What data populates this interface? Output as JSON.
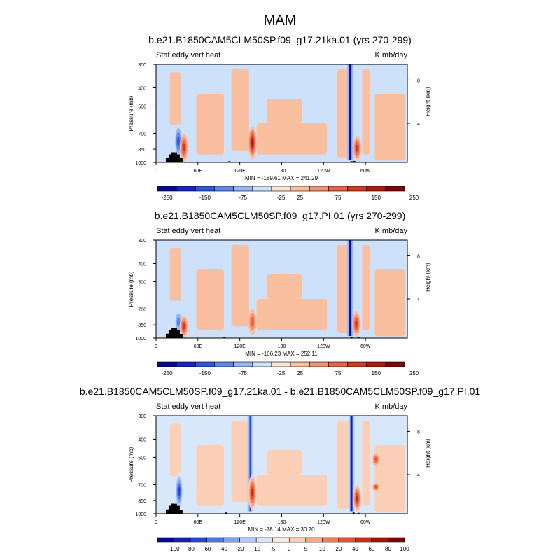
{
  "page": {
    "title": "MAM"
  },
  "scales": {
    "full": {
      "colors": [
        "#08088c",
        "#1a24c0",
        "#2f55db",
        "#5f87ee",
        "#98b6f5",
        "#cde1fa",
        "#fde3d1",
        "#f9bf9f",
        "#f29272",
        "#e56548",
        "#d03a22",
        "#ae1a0e",
        "#7c0606"
      ],
      "labels": [
        "-250",
        "-150",
        "-75",
        "-25",
        "25",
        "75",
        "150",
        "250"
      ],
      "label_boundaries": [
        1,
        3,
        5,
        7,
        8,
        10,
        12,
        14
      ]
    },
    "diff": {
      "colors": [
        "#08088c",
        "#1221b0",
        "#2646d2",
        "#4a74e8",
        "#7fa2f2",
        "#b3cbf8",
        "#d9e7fb",
        "#fdeadf",
        "#fbcfb5",
        "#f6a986",
        "#ee7d58",
        "#e0542f",
        "#c82d14",
        "#a21308",
        "#7c0606"
      ],
      "labels": [
        "-100",
        "-80",
        "-60",
        "-40",
        "-20",
        "-10",
        "-5",
        "0",
        "5",
        "10",
        "20",
        "40",
        "60",
        "80",
        "100"
      ],
      "label_boundaries": [
        1,
        2,
        3,
        4,
        5,
        6,
        7,
        8,
        9,
        10,
        11,
        12,
        13,
        14,
        15
      ]
    }
  },
  "chart_data": [
    {
      "type": "heatmap",
      "title": "b.e21.B1850CAM5CLM50SP.f09_g17.21ka.01 (yrs 270-299)",
      "left_label": "Stat eddy vert heat",
      "right_label": "K mb/day",
      "ylabel": "Pressure (mb)",
      "ylabel_right": "Height (km)",
      "x_ticks": [
        "0",
        "60E",
        "120E",
        "180",
        "120W",
        "60W"
      ],
      "x_tick_values": [
        0,
        60,
        120,
        180,
        240,
        300
      ],
      "x_range": [
        0,
        360
      ],
      "y_ticks": [
        "300",
        "400",
        "500",
        "700",
        "850",
        "1000"
      ],
      "y_range_mb": [
        300,
        1000
      ],
      "y_scale": "log",
      "right_ticks": [
        "8",
        "4"
      ],
      "stats": "MIN = -189.61  MAX = 241.29",
      "scale": "full",
      "min": -189.61,
      "max": 241.29,
      "features": [
        {
          "lon": 278,
          "p_top": 300,
          "p_bot": 975,
          "sign": -1,
          "level": 5,
          "kind": "strong-band"
        },
        {
          "lon": 138,
          "p_top": 640,
          "p_bot": 960,
          "sign": 1,
          "level": 4,
          "kind": "core"
        },
        {
          "lon": 32,
          "p_top": 620,
          "p_bot": 960,
          "sign": -1,
          "level": 3,
          "kind": "core"
        },
        {
          "lon": 40,
          "p_top": 700,
          "p_bot": 990,
          "sign": 1,
          "level": 3,
          "kind": "core"
        },
        {
          "lon": 288,
          "p_top": 720,
          "p_bot": 980,
          "sign": 1,
          "level": 3,
          "kind": "core"
        }
      ],
      "topography": [
        {
          "lon": [
            10,
            42
          ],
          "p": [
            1000,
            880
          ]
        },
        {
          "lon": 105,
          "p": [
            1000,
            985
          ]
        },
        {
          "lon": 280,
          "p": [
            1000,
            985
          ]
        },
        {
          "lon": 284,
          "p": [
            1000,
            982
          ]
        },
        {
          "lon": 290,
          "p": [
            1000,
            990
          ]
        }
      ]
    },
    {
      "type": "heatmap",
      "title": "b.e21.B1850CAM5CLM50SP.f09_g17.PI.01 (yrs 270-299)",
      "left_label": "Stat eddy vert heat",
      "right_label": "K mb/day",
      "ylabel": "Pressure (mb)",
      "ylabel_right": "Height (km)",
      "x_ticks": [
        "0",
        "60E",
        "120E",
        "180",
        "120W",
        "60W"
      ],
      "x_tick_values": [
        0,
        60,
        120,
        180,
        240,
        300
      ],
      "x_range": [
        0,
        360
      ],
      "y_ticks": [
        "300",
        "400",
        "500",
        "700",
        "850",
        "1000"
      ],
      "y_range_mb": [
        300,
        1000
      ],
      "y_scale": "log",
      "right_ticks": [
        "8",
        "4"
      ],
      "stats": "MIN = -166.23  MAX = 252.11",
      "scale": "full",
      "min": -166.23,
      "max": 252.11,
      "features": [
        {
          "lon": 278,
          "p_top": 300,
          "p_bot": 975,
          "sign": -1,
          "level": 5,
          "kind": "strong-band"
        },
        {
          "lon": 138,
          "p_top": 700,
          "p_bot": 960,
          "sign": 1,
          "level": 2,
          "kind": "core"
        },
        {
          "lon": 32,
          "p_top": 700,
          "p_bot": 960,
          "sign": -1,
          "level": 2,
          "kind": "core"
        },
        {
          "lon": 40,
          "p_top": 760,
          "p_bot": 990,
          "sign": 1,
          "level": 3,
          "kind": "core"
        },
        {
          "lon": 287,
          "p_top": 720,
          "p_bot": 980,
          "sign": 1,
          "level": 3,
          "kind": "core"
        }
      ],
      "topography": [
        {
          "lon": [
            10,
            42
          ],
          "p": [
            1000,
            880
          ]
        },
        {
          "lon": 98,
          "p": [
            1000,
            985
          ]
        },
        {
          "lon": 280,
          "p": [
            1000,
            985
          ]
        },
        {
          "lon": 290,
          "p": [
            1000,
            990
          ]
        }
      ]
    },
    {
      "type": "heatmap",
      "title": "b.e21.B1850CAM5CLM50SP.f09_g17.21ka.01 - b.e21.B1850CAM5CLM50SP.f09_g17.PI.01",
      "left_label": "Stat eddy vert heat",
      "right_label": "K mb/day",
      "ylabel": "Pressure (mb)",
      "ylabel_right": "Height (km)",
      "x_ticks": [
        "0",
        "60E",
        "120E",
        "180",
        "120W",
        "60W"
      ],
      "x_tick_values": [
        0,
        60,
        120,
        180,
        240,
        300
      ],
      "x_range": [
        0,
        360
      ],
      "y_ticks": [
        "300",
        "400",
        "500",
        "700",
        "850",
        "1000"
      ],
      "y_range_mb": [
        300,
        1000
      ],
      "y_scale": "log",
      "right_ticks": [
        "8",
        "4"
      ],
      "stats": "MIN = -78.14  MAX = 30.20",
      "scale": "diff",
      "min": -78.14,
      "max": 30.2,
      "features": [
        {
          "lon": 135,
          "p_top": 300,
          "p_bot": 970,
          "sign": -1,
          "level": 4,
          "kind": "strong-band"
        },
        {
          "lon": 280,
          "p_top": 300,
          "p_bot": 970,
          "sign": -1,
          "level": 5,
          "kind": "strong-band"
        },
        {
          "lon": 138,
          "p_top": 620,
          "p_bot": 960,
          "sign": 1,
          "level": 4,
          "kind": "core"
        },
        {
          "lon": 33,
          "p_top": 600,
          "p_bot": 960,
          "sign": -1,
          "level": 4,
          "kind": "core"
        },
        {
          "lon": 315,
          "p_top": 470,
          "p_bot": 560,
          "sign": 1,
          "level": 3,
          "kind": "core"
        },
        {
          "lon": 315,
          "p_top": 680,
          "p_bot": 760,
          "sign": 1,
          "level": 3,
          "kind": "core"
        },
        {
          "lon": 288,
          "p_top": 700,
          "p_bot": 980,
          "sign": 1,
          "level": 4,
          "kind": "core"
        }
      ],
      "topography": [
        {
          "lon": [
            10,
            42
          ],
          "p": [
            1000,
            880
          ]
        },
        {
          "lon": 100,
          "p": [
            1000,
            985
          ]
        },
        {
          "lon": 283,
          "p": [
            1000,
            985
          ]
        },
        {
          "lon": 290,
          "p": [
            1000,
            990
          ]
        }
      ]
    }
  ]
}
